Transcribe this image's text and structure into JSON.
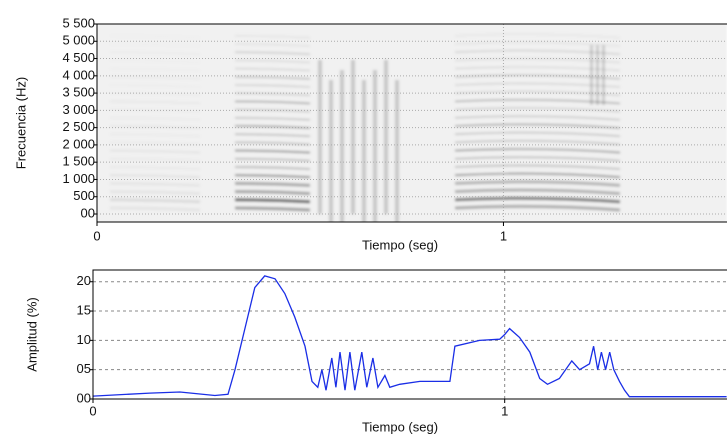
{
  "chart_data": [
    {
      "type": "spectrogram",
      "xlabel": "Tiempo (seg)",
      "ylabel": "Frecuencia (Hz)",
      "xlim": [
        0,
        1.55
      ],
      "xticks": [
        0,
        1
      ],
      "ylim": [
        0,
        5500
      ],
      "yticks": [
        {
          "value": 0,
          "label": "00"
        },
        500,
        {
          "value": 1000,
          "label": "1 000"
        },
        {
          "value": 1500,
          "label": "1 500"
        },
        {
          "value": 2000,
          "label": "2 000"
        },
        {
          "value": 2500,
          "label": "2 500"
        },
        {
          "value": 3000,
          "label": "3 000"
        },
        {
          "value": 3500,
          "label": "3 500"
        },
        {
          "value": 4000,
          "label": "4 000"
        },
        {
          "value": 4500,
          "label": "4 500"
        },
        {
          "value": 5000,
          "label": "5 000"
        },
        {
          "value": 5500,
          "label": "5 500"
        }
      ],
      "grid": true
    },
    {
      "type": "line",
      "xlabel": "Tiempo (seg)",
      "ylabel": "Amplitud (%)",
      "xlim": [
        0,
        1.54
      ],
      "xticks": [
        0,
        1
      ],
      "ylim": [
        0,
        22
      ],
      "yticks": [
        {
          "value": 0,
          "label": "00"
        },
        {
          "value": 5,
          "label": "05"
        },
        10,
        15,
        20
      ],
      "grid": true,
      "color": "#1a2ee6",
      "x": [
        0,
        0.138,
        0.211,
        0.296,
        0.328,
        0.345,
        0.369,
        0.393,
        0.417,
        0.442,
        0.466,
        0.49,
        0.515,
        0.532,
        0.546,
        0.556,
        0.566,
        0.58,
        0.59,
        0.6,
        0.612,
        0.624,
        0.636,
        0.653,
        0.665,
        0.68,
        0.692,
        0.709,
        0.721,
        0.745,
        0.794,
        0.867,
        0.879,
        0.939,
        0.988,
        1.0,
        1.012,
        1.036,
        1.061,
        1.085,
        1.104,
        1.133,
        1.163,
        1.182,
        1.206,
        1.216,
        1.226,
        1.235,
        1.245,
        1.255,
        1.265,
        1.279,
        1.291,
        1.303,
        1.539
      ],
      "values": [
        0.5,
        1.0,
        1.2,
        0.6,
        0.8,
        5,
        12,
        19,
        21,
        20.5,
        18,
        14,
        9,
        3,
        2,
        5,
        1.5,
        7,
        2,
        8,
        1.5,
        8,
        1.5,
        8,
        2,
        7,
        2,
        4,
        2,
        2.5,
        3,
        3,
        9,
        10,
        10.2,
        11,
        12,
        10.5,
        8,
        3.5,
        2.5,
        3.5,
        6.5,
        5,
        6,
        9,
        5,
        8,
        5,
        8,
        5,
        3,
        1.5,
        0.4,
        0.4
      ]
    }
  ]
}
